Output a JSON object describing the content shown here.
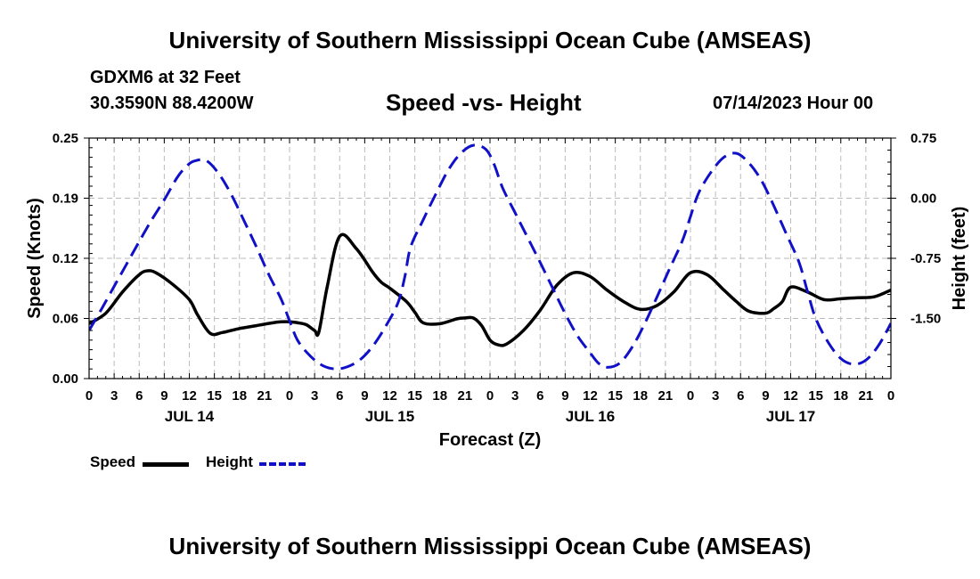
{
  "header": {
    "title": "University of Southern Mississippi Ocean Cube (AMSEAS)",
    "station": "GDXM6 at 32 Feet",
    "coords": "30.3590N  88.4200W",
    "chart_title": "Speed -vs- Height",
    "date": "07/14/2023 Hour 00"
  },
  "footer": {
    "title": "University of Southern Mississippi Ocean Cube (AMSEAS)"
  },
  "legend": {
    "speed_label": "Speed",
    "height_label": "Height"
  },
  "colors": {
    "speed": "#000000",
    "height": "#1010c8",
    "grid": "#bbbbbb"
  },
  "chart_data": {
    "type": "line",
    "title": "Speed -vs- Height",
    "xlabel": "Forecast (Z)",
    "ylabel": "Speed (Knots)",
    "y2label": "Height (feet)",
    "xlim": [
      0,
      96
    ],
    "ylim": [
      0,
      0.25
    ],
    "y2lim": [
      -2.25,
      0.75
    ],
    "x_ticks": [
      0,
      3,
      6,
      9,
      12,
      15,
      18,
      21,
      24,
      27,
      30,
      33,
      36,
      39,
      42,
      45,
      48,
      51,
      54,
      57,
      60,
      63,
      66,
      69,
      72,
      75,
      78,
      81,
      84,
      87,
      90,
      93,
      96
    ],
    "x_tick_labels": [
      "0",
      "3",
      "6",
      "9",
      "12",
      "15",
      "18",
      "21",
      "0",
      "3",
      "6",
      "9",
      "12",
      "15",
      "18",
      "21",
      "0",
      "3",
      "6",
      "9",
      "12",
      "15",
      "18",
      "21",
      "0",
      "3",
      "6",
      "9",
      "12",
      "15",
      "18",
      "21",
      "0"
    ],
    "day_labels": [
      {
        "x": 12,
        "label": "JUL 14"
      },
      {
        "x": 36,
        "label": "JUL 15"
      },
      {
        "x": 60,
        "label": "JUL 16"
      },
      {
        "x": 84,
        "label": "JUL 17"
      }
    ],
    "y_ticks": [
      0,
      0.0625,
      0.125,
      0.1875,
      0.25
    ],
    "y_tick_labels": [
      "0.00",
      "0.06",
      "0.12",
      "0.19",
      "0.25"
    ],
    "y2_ticks": [
      -1.5,
      -0.75,
      0.0,
      0.75
    ],
    "y2_tick_labels": [
      "-1.50",
      "-0.75",
      "0.00",
      "0.75"
    ],
    "series": [
      {
        "name": "Speed",
        "axis": "left",
        "style": "solid",
        "x": [
          0,
          2,
          4,
          6,
          7,
          8,
          10,
          12,
          13,
          14.5,
          16,
          18,
          20,
          22,
          23,
          24,
          25,
          26,
          27,
          27.5,
          28.5,
          30,
          32,
          34,
          35,
          36,
          38,
          39,
          40,
          42,
          44,
          45,
          46,
          47,
          48,
          49,
          50,
          52,
          54,
          56,
          58,
          60,
          62,
          64,
          66,
          68,
          70,
          72,
          74,
          76,
          77.5,
          79,
          81,
          82,
          83,
          84,
          86,
          88,
          90,
          92,
          94,
          96
        ],
        "y": [
          0.057,
          0.068,
          0.09,
          0.108,
          0.112,
          0.11,
          0.098,
          0.082,
          0.066,
          0.047,
          0.048,
          0.052,
          0.055,
          0.058,
          0.059,
          0.059,
          0.058,
          0.056,
          0.05,
          0.048,
          0.095,
          0.148,
          0.135,
          0.11,
          0.1,
          0.094,
          0.08,
          0.069,
          0.058,
          0.057,
          0.062,
          0.063,
          0.063,
          0.055,
          0.04,
          0.035,
          0.036,
          0.05,
          0.071,
          0.097,
          0.11,
          0.106,
          0.092,
          0.08,
          0.072,
          0.076,
          0.09,
          0.11,
          0.108,
          0.092,
          0.08,
          0.07,
          0.068,
          0.073,
          0.08,
          0.095,
          0.09,
          0.082,
          0.083,
          0.084,
          0.085,
          0.092
        ]
      },
      {
        "name": "Height",
        "axis": "right",
        "style": "dashed",
        "x": [
          0,
          1.5,
          3,
          4.5,
          6,
          7.5,
          9,
          10.5,
          11.5,
          12.5,
          14,
          15.5,
          17,
          18.5,
          20,
          21.5,
          23,
          24,
          25,
          26.5,
          28,
          29.5,
          31,
          32.5,
          34,
          35.5,
          37,
          37.8,
          38.5,
          40,
          41.5,
          43,
          44.5,
          46,
          47.5,
          48.5,
          49.5,
          51,
          52.5,
          54,
          55.5,
          57,
          58.5,
          60,
          61,
          62,
          63.5,
          65,
          66.5,
          68,
          69.5,
          71,
          72,
          73,
          74.5,
          76,
          77.5,
          79,
          80.5,
          82,
          83.5,
          85,
          86,
          87,
          88.5,
          90,
          91.5,
          93,
          94.5,
          96
        ],
        "y": [
          -1.65,
          -1.38,
          -1.1,
          -0.82,
          -0.54,
          -0.27,
          -0.02,
          0.25,
          0.38,
          0.46,
          0.47,
          0.31,
          0.05,
          -0.27,
          -0.6,
          -0.95,
          -1.26,
          -1.53,
          -1.78,
          -1.97,
          -2.09,
          -2.13,
          -2.1,
          -2.01,
          -1.84,
          -1.6,
          -1.3,
          -0.98,
          -0.61,
          -0.27,
          0.05,
          0.35,
          0.56,
          0.66,
          0.61,
          0.42,
          0.13,
          -0.18,
          -0.49,
          -0.8,
          -1.12,
          -1.44,
          -1.72,
          -1.93,
          -2.06,
          -2.11,
          -2.06,
          -1.86,
          -1.57,
          -1.23,
          -0.88,
          -0.54,
          -0.23,
          0.07,
          0.33,
          0.51,
          0.56,
          0.44,
          0.22,
          -0.1,
          -0.45,
          -0.8,
          -1.16,
          -1.5,
          -1.8,
          -2.0,
          -2.07,
          -2.02,
          -1.84,
          -1.56
        ]
      }
    ]
  }
}
